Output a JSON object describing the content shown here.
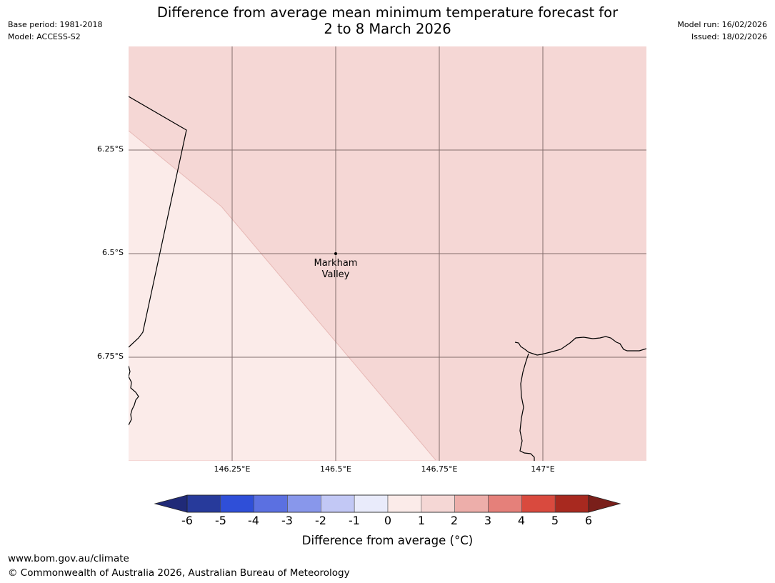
{
  "header": {
    "base_period": "Base period: 1981-2018",
    "model": "Model: ACCESS-S2",
    "model_run": "Model run: 16/02/2026",
    "issued": "Issued: 18/02/2026",
    "title_line1": "Difference from average mean minimum temperature forecast for",
    "title_line2": "2 to 8 March 2026"
  },
  "map": {
    "extent_lon": [
      146.0,
      147.25
    ],
    "extent_lat": [
      -6.0,
      -7.0
    ],
    "lat_ticks": [
      "6.25°S",
      "6.5°S",
      "6.75°S"
    ],
    "lon_ticks": [
      "146.25°E",
      "146.5°E",
      "146.75°E",
      "147°E"
    ],
    "place_label": "Markham Valley",
    "place_label_line1": "Markham",
    "place_label_line2": "Valley",
    "regions": [
      {
        "name": "0 to 1 °C",
        "color": "#fbebe9"
      },
      {
        "name": "1 to 2 °C",
        "color": "#f5d7d5"
      }
    ],
    "colors": {
      "grid": "#6e5a5a",
      "coast": "#000000"
    }
  },
  "colorbar": {
    "title": "Difference from average ($^\\circ$C)",
    "title_text": "Difference from average (°C)",
    "ticks": [
      "-6",
      "-5",
      "-4",
      "-3",
      "-2",
      "-1",
      "0",
      "1",
      "2",
      "3",
      "4",
      "5",
      "6"
    ],
    "colors": [
      "#273a9b",
      "#2f4fd8",
      "#5b70e1",
      "#8897eb",
      "#c2c8f5",
      "#e9ebfb",
      "#fbebe9",
      "#f5d7d5",
      "#edaeaa",
      "#e5807a",
      "#d94a3e",
      "#a8291f"
    ],
    "under_color": "#202a78",
    "over_color": "#7a1f1a"
  },
  "footer": {
    "url": "www.bom.gov.au/climate",
    "copyright": "© Commonwealth of Australia 2026, Australian Bureau of Meteorology"
  }
}
